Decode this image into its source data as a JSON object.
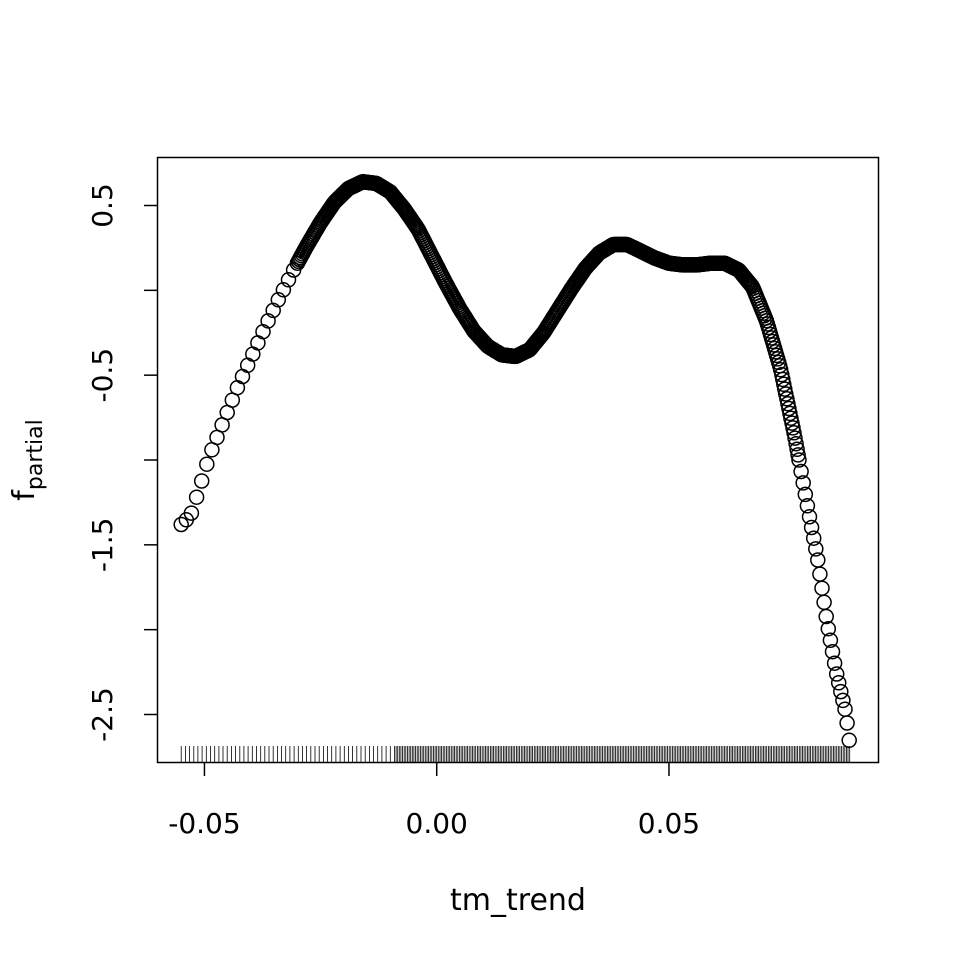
{
  "chart_data": {
    "type": "scatter",
    "title": "",
    "xlabel": "tm_trend",
    "ylabel": {
      "main": "f",
      "subscript": "partial"
    },
    "xlim": [
      -0.06,
      0.095
    ],
    "ylim": [
      -2.78,
      0.78
    ],
    "x_ticks": [
      -0.05,
      0.0,
      0.05
    ],
    "x_tick_labels": [
      "-0.05",
      "0.00",
      "0.05"
    ],
    "y_ticks": [
      0.5,
      0.0,
      -0.5,
      -1.0,
      -1.5,
      -2.0,
      -2.5
    ],
    "y_tick_labels": [
      "0.5",
      "",
      "-0.5",
      "",
      "-1.5",
      "",
      "-2.5"
    ],
    "grid": false,
    "legend": "none",
    "marker": "open-circle",
    "rug": "x",
    "colors": {
      "points": "#000000",
      "frame": "#000000",
      "background": "#ffffff"
    },
    "curve": [
      {
        "x": -0.055,
        "y": -1.38
      },
      {
        "x": -0.053,
        "y": -1.33
      },
      {
        "x": -0.051,
        "y": -1.16
      },
      {
        "x": -0.049,
        "y": -0.98
      },
      {
        "x": -0.046,
        "y": -0.78
      },
      {
        "x": -0.043,
        "y": -0.58
      },
      {
        "x": -0.04,
        "y": -0.4
      },
      {
        "x": -0.037,
        "y": -0.22
      },
      {
        "x": -0.034,
        "y": -0.05
      },
      {
        "x": -0.031,
        "y": 0.11
      },
      {
        "x": -0.028,
        "y": 0.26
      },
      {
        "x": -0.025,
        "y": 0.4
      },
      {
        "x": -0.022,
        "y": 0.52
      },
      {
        "x": -0.019,
        "y": 0.6
      },
      {
        "x": -0.016,
        "y": 0.64
      },
      {
        "x": -0.013,
        "y": 0.63
      },
      {
        "x": -0.01,
        "y": 0.58
      },
      {
        "x": -0.007,
        "y": 0.48
      },
      {
        "x": -0.004,
        "y": 0.36
      },
      {
        "x": -0.001,
        "y": 0.2
      },
      {
        "x": 0.002,
        "y": 0.04
      },
      {
        "x": 0.005,
        "y": -0.11
      },
      {
        "x": 0.008,
        "y": -0.24
      },
      {
        "x": 0.011,
        "y": -0.33
      },
      {
        "x": 0.014,
        "y": -0.38
      },
      {
        "x": 0.017,
        "y": -0.39
      },
      {
        "x": 0.02,
        "y": -0.35
      },
      {
        "x": 0.023,
        "y": -0.25
      },
      {
        "x": 0.026,
        "y": -0.12
      },
      {
        "x": 0.029,
        "y": 0.01
      },
      {
        "x": 0.032,
        "y": 0.13
      },
      {
        "x": 0.035,
        "y": 0.22
      },
      {
        "x": 0.038,
        "y": 0.27
      },
      {
        "x": 0.041,
        "y": 0.27
      },
      {
        "x": 0.044,
        "y": 0.23
      },
      {
        "x": 0.047,
        "y": 0.19
      },
      {
        "x": 0.05,
        "y": 0.16
      },
      {
        "x": 0.053,
        "y": 0.15
      },
      {
        "x": 0.056,
        "y": 0.15
      },
      {
        "x": 0.059,
        "y": 0.16
      },
      {
        "x": 0.062,
        "y": 0.16
      },
      {
        "x": 0.065,
        "y": 0.12
      },
      {
        "x": 0.068,
        "y": 0.02
      },
      {
        "x": 0.071,
        "y": -0.18
      },
      {
        "x": 0.074,
        "y": -0.46
      },
      {
        "x": 0.077,
        "y": -0.85
      },
      {
        "x": 0.08,
        "y": -1.3
      },
      {
        "x": 0.082,
        "y": -1.58
      },
      {
        "x": 0.084,
        "y": -1.95
      },
      {
        "x": 0.086,
        "y": -2.25
      },
      {
        "x": 0.088,
        "y": -2.48
      },
      {
        "x": 0.0885,
        "y": -2.58
      },
      {
        "x": 0.089,
        "y": -2.7
      }
    ]
  }
}
